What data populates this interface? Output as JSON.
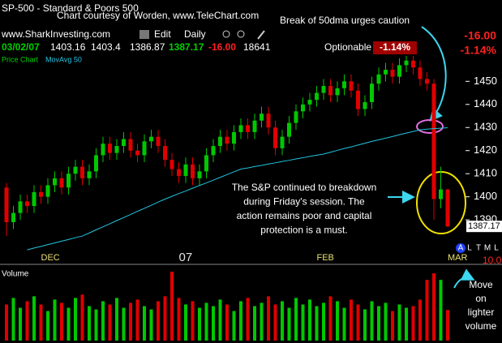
{
  "header": {
    "title": "SP-500 - Standard & Poors 500",
    "credit": "Chart courtesy of Worden, www.TeleChart.com",
    "site": "www.SharkInvesting.com",
    "menu_edit": "Edit",
    "menu_period": "Daily",
    "date": "03/02/07",
    "change": "-16.00",
    "change_pct": "-1.14%",
    "optionable": "Optionable",
    "pane_label": "Price Chart",
    "toolbar": [
      "A",
      "L",
      "T",
      "M",
      "L"
    ],
    "scale_value": "10.0"
  },
  "chart_data": {
    "type": "candlestick",
    "categories": [
      null,
      null,
      null,
      null,
      null,
      "DEC",
      null,
      null,
      null,
      null,
      null,
      null,
      null,
      null,
      null,
      null,
      null,
      null,
      null,
      null,
      null,
      null,
      null,
      null,
      null,
      "07",
      null,
      null,
      null,
      null,
      null,
      null,
      null,
      null,
      null,
      null,
      null,
      null,
      null,
      null,
      null,
      null,
      null,
      null,
      null,
      "FEB",
      null,
      null,
      null,
      null,
      null,
      null,
      null,
      null,
      null,
      null,
      null,
      null,
      null,
      null,
      null,
      null,
      null,
      null,
      "MAR"
    ],
    "open": [
      1404,
      1389,
      1393,
      1398,
      1396,
      1402,
      1400,
      1405,
      1408,
      1404,
      1410,
      1413,
      1408,
      1411,
      1418,
      1423,
      1419,
      1422,
      1425,
      1420,
      1418,
      1424,
      1426,
      1422,
      1416,
      1412,
      1409,
      1414,
      1408,
      1411,
      1418,
      1422,
      1426,
      1423,
      1428,
      1431,
      1428,
      1433,
      1436,
      1430,
      1421,
      1426,
      1432,
      1437,
      1440,
      1442,
      1445,
      1448,
      1444,
      1447,
      1450,
      1446,
      1438,
      1441,
      1449,
      1453,
      1455,
      1452,
      1457,
      1459,
      1456,
      1451,
      1449,
      1399,
      1403.16
    ],
    "high": [
      1406,
      1396,
      1401,
      1401,
      1405,
      1405,
      1408,
      1411,
      1411,
      1413,
      1416,
      1416,
      1414,
      1421,
      1426,
      1426,
      1425,
      1428,
      1428,
      1423,
      1427,
      1429,
      1429,
      1425,
      1419,
      1415,
      1417,
      1417,
      1414,
      1421,
      1425,
      1429,
      1429,
      1431,
      1434,
      1434,
      1436,
      1439,
      1439,
      1433,
      1429,
      1435,
      1440,
      1443,
      1445,
      1448,
      1451,
      1451,
      1450,
      1453,
      1453,
      1449,
      1444,
      1452,
      1456,
      1458,
      1458,
      1460,
      1461,
      1461,
      1459,
      1454,
      1451,
      1413,
      1403.4
    ],
    "low": [
      1383,
      1386,
      1390,
      1393,
      1393,
      1397,
      1397,
      1402,
      1401,
      1401,
      1407,
      1405,
      1405,
      1408,
      1415,
      1416,
      1416,
      1419,
      1417,
      1415,
      1415,
      1421,
      1419,
      1413,
      1409,
      1406,
      1406,
      1405,
      1405,
      1408,
      1415,
      1419,
      1420,
      1420,
      1425,
      1425,
      1425,
      1430,
      1427,
      1418,
      1418,
      1423,
      1429,
      1434,
      1437,
      1439,
      1442,
      1441,
      1441,
      1444,
      1443,
      1435,
      1435,
      1438,
      1446,
      1450,
      1449,
      1449,
      1454,
      1453,
      1448,
      1446,
      1390,
      1395,
      1386.87
    ],
    "close": [
      1389,
      1393,
      1398,
      1396,
      1402,
      1400,
      1405,
      1408,
      1404,
      1410,
      1413,
      1408,
      1411,
      1418,
      1423,
      1419,
      1422,
      1425,
      1420,
      1418,
      1424,
      1426,
      1422,
      1416,
      1412,
      1409,
      1414,
      1408,
      1411,
      1418,
      1422,
      1426,
      1423,
      1428,
      1431,
      1428,
      1433,
      1436,
      1430,
      1421,
      1426,
      1432,
      1437,
      1440,
      1442,
      1445,
      1448,
      1444,
      1447,
      1450,
      1446,
      1438,
      1441,
      1449,
      1453,
      1455,
      1452,
      1457,
      1459,
      1456,
      1451,
      1449,
      1399,
      1403.17,
      1387.17
    ],
    "up_color": "#00c800",
    "down_color": "#e00000",
    "ylim": [
      1376,
      1461
    ],
    "yticks": [
      1390,
      1400,
      1410,
      1420,
      1430,
      1440,
      1450
    ],
    "ma": {
      "name": "MovAvg 50",
      "color": "#22c4e0",
      "values": [
        null,
        null,
        null,
        1377,
        1377.8,
        1378.5,
        1379.3,
        1380,
        1380.8,
        1381.5,
        1382.3,
        1383,
        1384.3,
        1385.7,
        1387,
        1388.3,
        1389.7,
        1391,
        1392.3,
        1393.7,
        1395,
        1396.3,
        1397.7,
        1399,
        1400.2,
        1401.4,
        1402.5,
        1403.7,
        1404.9,
        1406,
        1407.2,
        1408.4,
        1409.6,
        1410.8,
        1412,
        1412.5,
        1413.1,
        1413.6,
        1414.2,
        1414.7,
        1415.3,
        1415.8,
        1416.4,
        1416.9,
        1417.5,
        1418,
        1418.5,
        1419.3,
        1420.1,
        1420.9,
        1421.6,
        1422.4,
        1423.2,
        1424,
        1424.7,
        1425.4,
        1426.1,
        1426.9,
        1427.6,
        1428.3,
        1429,
        1429.3,
        1429.5,
        1429.7,
        1429.9
      ]
    },
    "volume": {
      "label": "Volume",
      "ylim": [
        0,
        44000
      ],
      "values": [
        22000,
        26000,
        20000,
        24000,
        27000,
        22000,
        18000,
        25000,
        23000,
        20000,
        26000,
        28000,
        21000,
        19000,
        24000,
        22000,
        26000,
        20000,
        23000,
        25000,
        21000,
        19000,
        24000,
        27000,
        42000,
        26000,
        22000,
        24000,
        20000,
        23000,
        21000,
        25000,
        22000,
        18000,
        24000,
        26000,
        21000,
        23000,
        27000,
        22000,
        24000,
        20000,
        26000,
        22000,
        25000,
        21000,
        23000,
        27000,
        24000,
        20000,
        25000,
        22000,
        19000,
        24000,
        21000,
        23000,
        18000,
        22000,
        20000,
        21000,
        25000,
        37000,
        41000,
        37000,
        18641
      ]
    },
    "annotations": {
      "top": "Break of 50dma urges caution",
      "middle": [
        "The S&P continued to breakdown",
        "during Friday's session. The",
        "action remains poor and capital",
        "protection is a must."
      ],
      "volume": [
        "Move",
        "on",
        "lighter",
        "volume"
      ]
    }
  }
}
